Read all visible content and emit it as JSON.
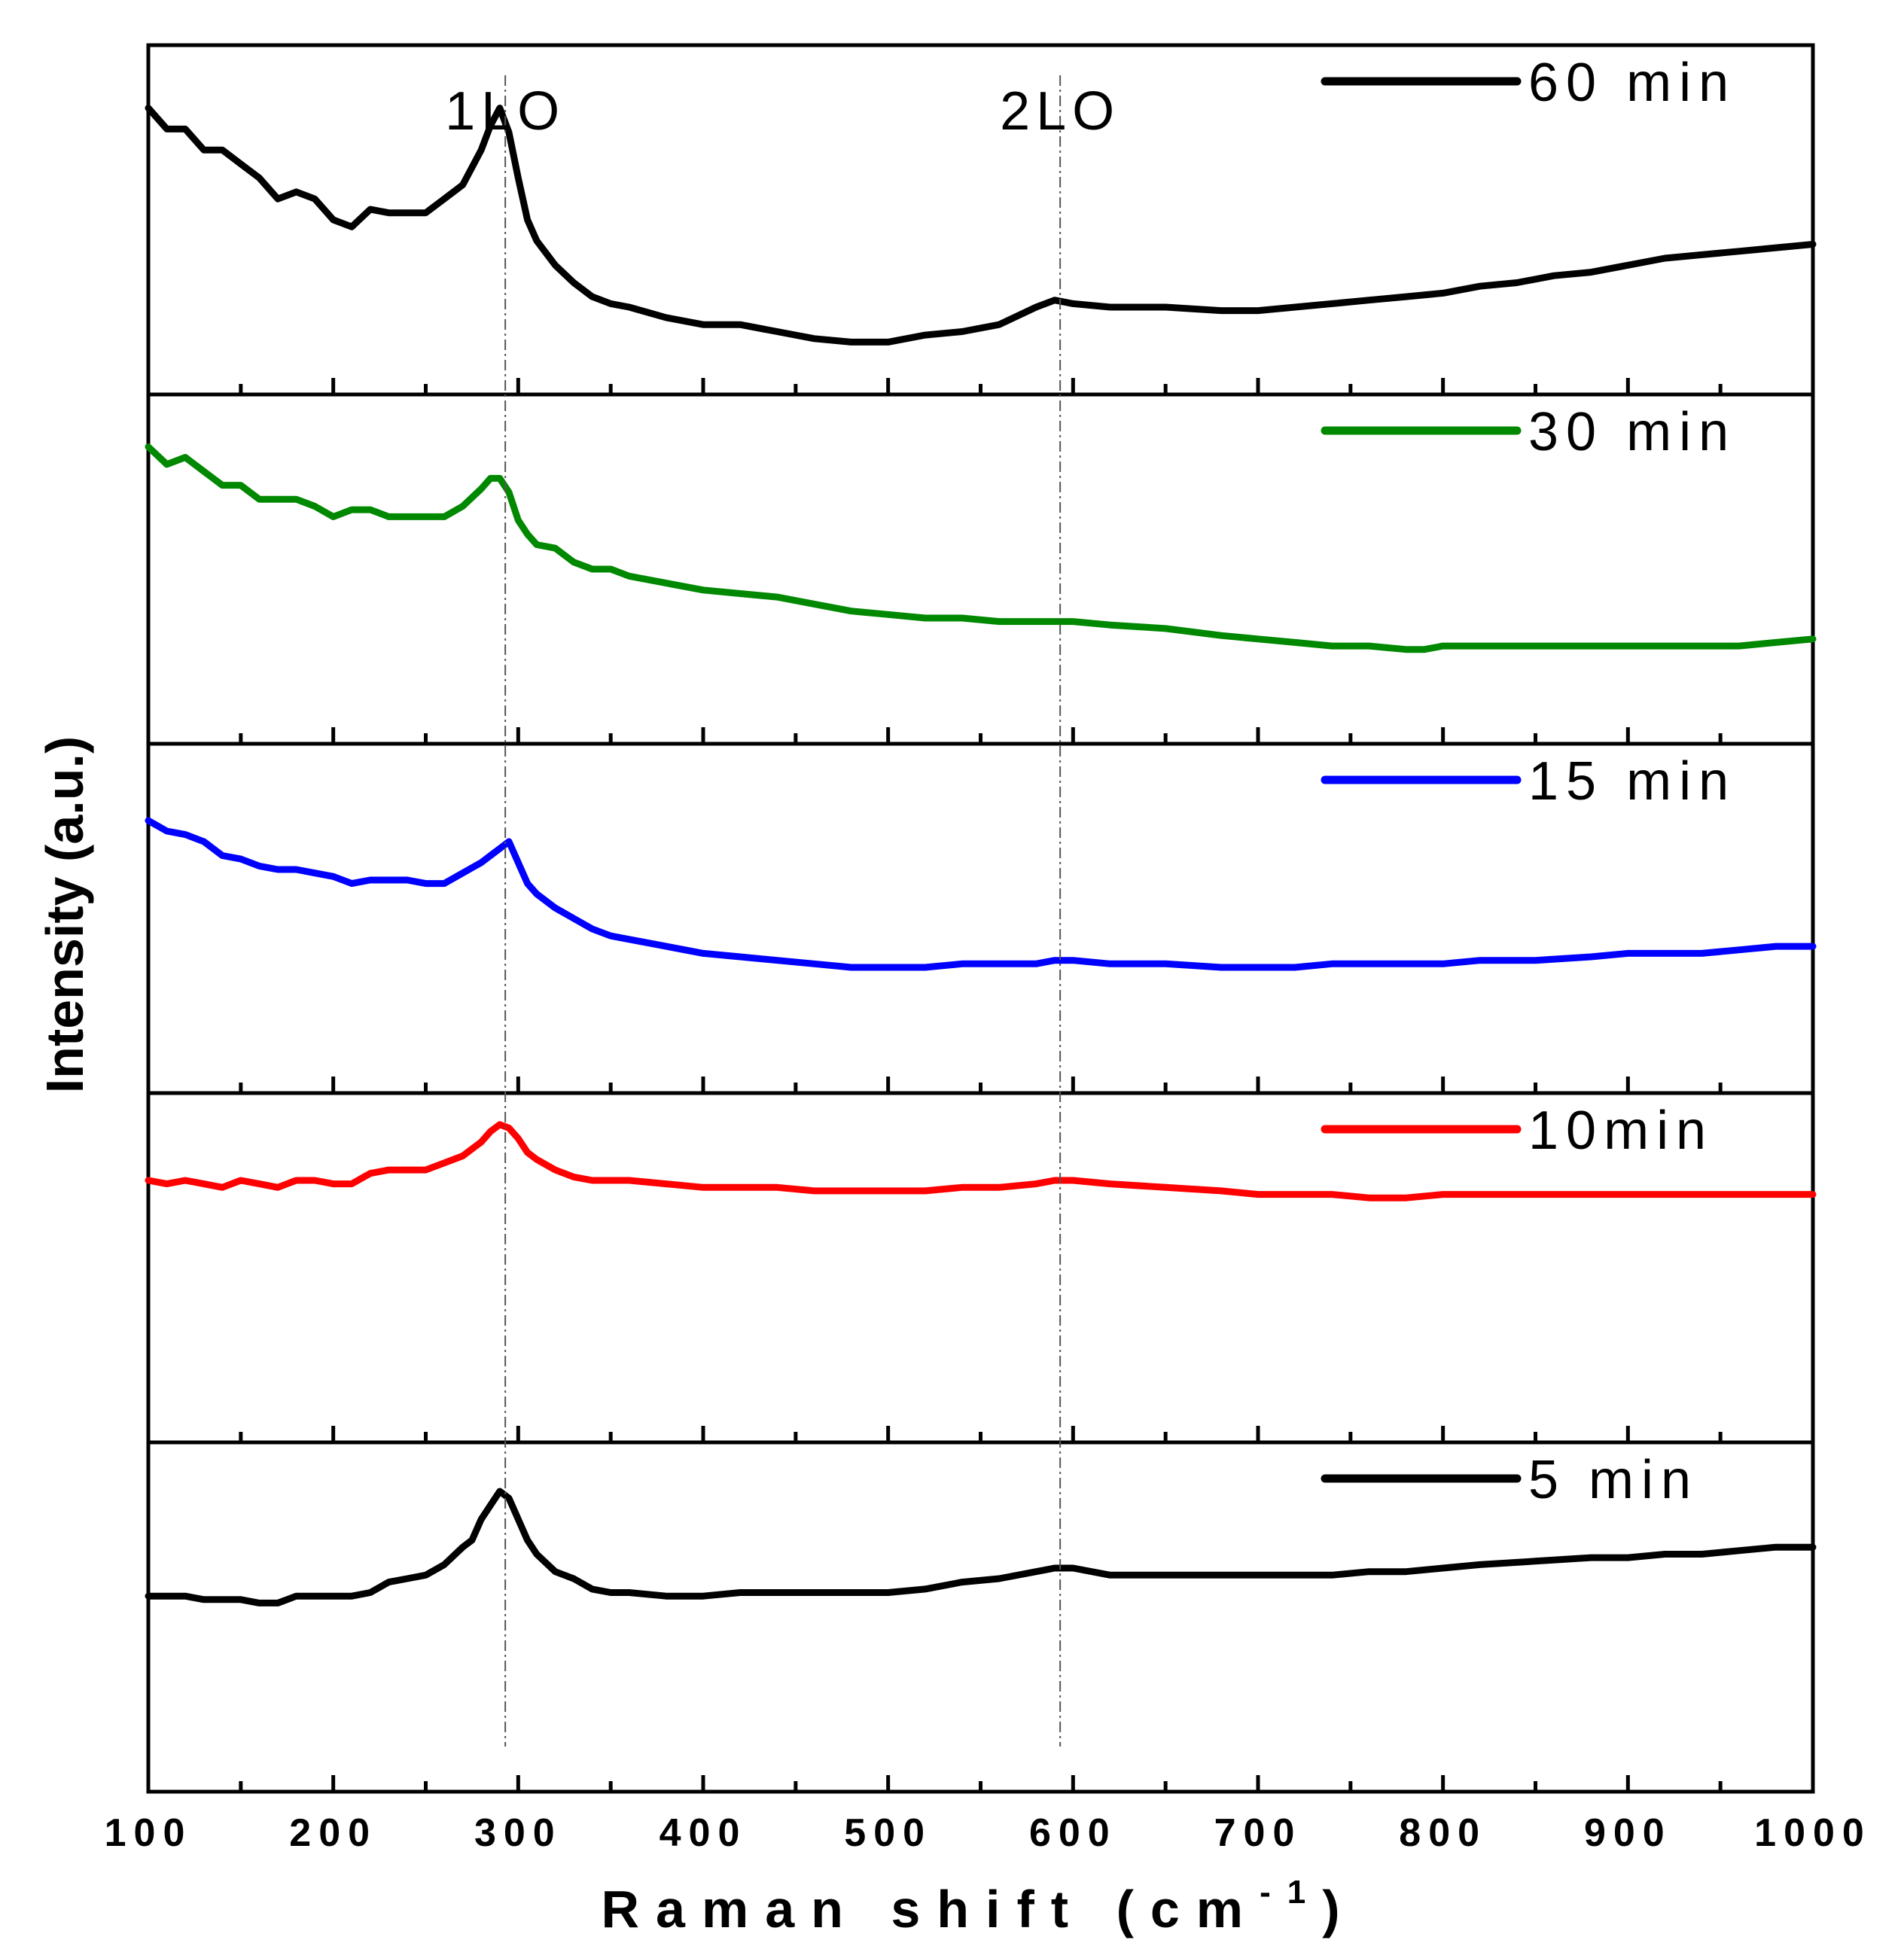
{
  "chart_data": {
    "type": "line",
    "title": "",
    "xlabel": "Raman shift (cm",
    "xlabel_superscript": "-1",
    "xlabel_close": ")",
    "ylabel": "Intensity (a.u.)",
    "xlim": [
      100,
      1000
    ],
    "xticks": [
      100,
      200,
      300,
      400,
      500,
      600,
      700,
      800,
      900,
      1000
    ],
    "minor_tick_step": 50,
    "peak_annotations": [
      {
        "label": "1LO",
        "x": 293
      },
      {
        "label": "2LO",
        "x": 593
      }
    ],
    "panels": [
      {
        "name": "60 min",
        "legend": "60  min",
        "color": "#000000",
        "x": [
          100,
          110,
          120,
          130,
          140,
          150,
          160,
          170,
          180,
          190,
          200,
          210,
          220,
          230,
          240,
          250,
          260,
          270,
          280,
          285,
          290,
          295,
          300,
          305,
          310,
          320,
          330,
          340,
          350,
          360,
          380,
          400,
          420,
          440,
          460,
          480,
          500,
          520,
          540,
          560,
          580,
          590,
          600,
          620,
          650,
          680,
          700,
          720,
          740,
          760,
          780,
          800,
          820,
          840,
          860,
          880,
          900,
          920,
          940,
          960,
          980,
          1000
        ],
        "y": [
          0.82,
          0.76,
          0.76,
          0.7,
          0.7,
          0.66,
          0.62,
          0.56,
          0.58,
          0.56,
          0.5,
          0.48,
          0.53,
          0.52,
          0.52,
          0.52,
          0.56,
          0.6,
          0.7,
          0.77,
          0.82,
          0.75,
          0.62,
          0.5,
          0.44,
          0.37,
          0.32,
          0.28,
          0.26,
          0.25,
          0.22,
          0.2,
          0.2,
          0.18,
          0.16,
          0.15,
          0.15,
          0.17,
          0.18,
          0.2,
          0.25,
          0.27,
          0.26,
          0.25,
          0.25,
          0.24,
          0.24,
          0.25,
          0.26,
          0.27,
          0.28,
          0.29,
          0.31,
          0.32,
          0.34,
          0.35,
          0.37,
          0.39,
          0.4,
          0.41,
          0.42,
          0.43
        ]
      },
      {
        "name": "30 min",
        "legend": "30  min",
        "color": "#008800",
        "x": [
          100,
          110,
          120,
          130,
          140,
          150,
          160,
          170,
          180,
          190,
          200,
          210,
          220,
          230,
          240,
          250,
          260,
          270,
          280,
          285,
          290,
          295,
          300,
          305,
          310,
          320,
          330,
          340,
          350,
          360,
          380,
          400,
          420,
          440,
          460,
          480,
          500,
          520,
          540,
          560,
          580,
          600,
          620,
          650,
          680,
          700,
          720,
          740,
          760,
          780,
          790,
          800,
          820,
          850,
          880,
          900,
          920,
          940,
          960,
          980,
          1000
        ],
        "y": [
          0.85,
          0.8,
          0.82,
          0.78,
          0.74,
          0.74,
          0.7,
          0.7,
          0.7,
          0.68,
          0.65,
          0.67,
          0.67,
          0.65,
          0.65,
          0.65,
          0.65,
          0.68,
          0.73,
          0.76,
          0.76,
          0.72,
          0.64,
          0.6,
          0.57,
          0.56,
          0.52,
          0.5,
          0.5,
          0.48,
          0.46,
          0.44,
          0.43,
          0.42,
          0.4,
          0.38,
          0.37,
          0.36,
          0.36,
          0.35,
          0.35,
          0.35,
          0.34,
          0.33,
          0.31,
          0.3,
          0.29,
          0.28,
          0.28,
          0.27,
          0.27,
          0.28,
          0.28,
          0.28,
          0.28,
          0.28,
          0.28,
          0.28,
          0.28,
          0.29,
          0.3
        ]
      },
      {
        "name": "15 min",
        "legend": "15  min",
        "color": "#0000ff",
        "x": [
          100,
          110,
          120,
          130,
          140,
          150,
          160,
          170,
          180,
          190,
          200,
          210,
          220,
          230,
          240,
          250,
          260,
          270,
          280,
          285,
          290,
          295,
          300,
          305,
          310,
          320,
          330,
          340,
          350,
          360,
          380,
          400,
          420,
          440,
          460,
          480,
          500,
          520,
          540,
          560,
          580,
          590,
          600,
          620,
          650,
          680,
          700,
          720,
          740,
          760,
          780,
          800,
          820,
          850,
          880,
          900,
          920,
          940,
          960,
          980,
          1000
        ],
        "y": [
          0.78,
          0.75,
          0.74,
          0.72,
          0.68,
          0.67,
          0.65,
          0.64,
          0.64,
          0.63,
          0.62,
          0.6,
          0.61,
          0.61,
          0.61,
          0.6,
          0.6,
          0.63,
          0.66,
          0.68,
          0.7,
          0.72,
          0.66,
          0.6,
          0.57,
          0.53,
          0.5,
          0.47,
          0.45,
          0.44,
          0.42,
          0.4,
          0.39,
          0.38,
          0.37,
          0.36,
          0.36,
          0.36,
          0.37,
          0.37,
          0.37,
          0.38,
          0.38,
          0.37,
          0.37,
          0.36,
          0.36,
          0.36,
          0.37,
          0.37,
          0.37,
          0.37,
          0.38,
          0.38,
          0.39,
          0.4,
          0.4,
          0.4,
          0.41,
          0.42,
          0.42
        ]
      },
      {
        "name": "10 min",
        "legend": "10min",
        "color": "#ff0000",
        "x": [
          100,
          110,
          120,
          130,
          140,
          150,
          160,
          170,
          180,
          190,
          200,
          210,
          220,
          230,
          240,
          250,
          260,
          270,
          280,
          285,
          290,
          295,
          300,
          305,
          310,
          320,
          330,
          340,
          350,
          360,
          380,
          400,
          420,
          440,
          460,
          480,
          500,
          520,
          540,
          560,
          580,
          590,
          600,
          620,
          650,
          680,
          700,
          720,
          740,
          760,
          780,
          800,
          820,
          850,
          880,
          900,
          920,
          940,
          960,
          980,
          1000
        ],
        "y": [
          0.75,
          0.74,
          0.75,
          0.74,
          0.73,
          0.75,
          0.74,
          0.73,
          0.75,
          0.75,
          0.74,
          0.74,
          0.77,
          0.78,
          0.78,
          0.78,
          0.8,
          0.82,
          0.86,
          0.89,
          0.91,
          0.9,
          0.87,
          0.83,
          0.81,
          0.78,
          0.76,
          0.75,
          0.75,
          0.75,
          0.74,
          0.73,
          0.73,
          0.73,
          0.72,
          0.72,
          0.72,
          0.72,
          0.73,
          0.73,
          0.74,
          0.75,
          0.75,
          0.74,
          0.73,
          0.72,
          0.71,
          0.71,
          0.71,
          0.7,
          0.7,
          0.71,
          0.71,
          0.71,
          0.71,
          0.71,
          0.71,
          0.71,
          0.71,
          0.71,
          0.71
        ]
      },
      {
        "name": "5 min",
        "legend": "5  min",
        "color": "#000000",
        "x": [
          100,
          110,
          120,
          130,
          140,
          150,
          160,
          170,
          180,
          190,
          200,
          210,
          220,
          230,
          240,
          250,
          260,
          270,
          275,
          280,
          285,
          290,
          295,
          300,
          305,
          310,
          320,
          330,
          340,
          350,
          360,
          380,
          400,
          420,
          440,
          460,
          480,
          500,
          520,
          540,
          560,
          580,
          590,
          600,
          620,
          650,
          680,
          700,
          720,
          740,
          760,
          780,
          800,
          820,
          850,
          880,
          900,
          920,
          940,
          960,
          980,
          1000
        ],
        "y": [
          0.56,
          0.56,
          0.56,
          0.55,
          0.55,
          0.55,
          0.54,
          0.54,
          0.56,
          0.56,
          0.56,
          0.56,
          0.57,
          0.6,
          0.61,
          0.62,
          0.65,
          0.7,
          0.72,
          0.78,
          0.82,
          0.86,
          0.84,
          0.78,
          0.72,
          0.68,
          0.63,
          0.61,
          0.58,
          0.57,
          0.57,
          0.56,
          0.56,
          0.57,
          0.57,
          0.57,
          0.57,
          0.57,
          0.58,
          0.6,
          0.61,
          0.63,
          0.64,
          0.64,
          0.62,
          0.62,
          0.62,
          0.62,
          0.62,
          0.62,
          0.63,
          0.63,
          0.64,
          0.65,
          0.66,
          0.67,
          0.67,
          0.68,
          0.68,
          0.69,
          0.7,
          0.7
        ]
      }
    ]
  }
}
